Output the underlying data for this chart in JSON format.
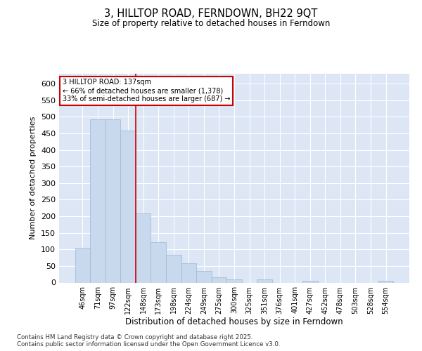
{
  "title": "3, HILLTOP ROAD, FERNDOWN, BH22 9QT",
  "subtitle": "Size of property relative to detached houses in Ferndown",
  "xlabel": "Distribution of detached houses by size in Ferndown",
  "ylabel": "Number of detached properties",
  "categories": [
    "46sqm",
    "71sqm",
    "97sqm",
    "122sqm",
    "148sqm",
    "173sqm",
    "198sqm",
    "224sqm",
    "249sqm",
    "275sqm",
    "300sqm",
    "325sqm",
    "351sqm",
    "376sqm",
    "401sqm",
    "427sqm",
    "452sqm",
    "478sqm",
    "503sqm",
    "528sqm",
    "554sqm"
  ],
  "values": [
    105,
    492,
    492,
    458,
    208,
    122,
    83,
    58,
    35,
    15,
    10,
    0,
    10,
    0,
    0,
    5,
    0,
    0,
    0,
    0,
    5
  ],
  "bar_color": "#c8d9ee",
  "bar_edge_color": "#9ab8d8",
  "background_color": "#dce6f5",
  "grid_color": "#ffffff",
  "vline_x": 3.5,
  "vline_color": "#cc0000",
  "annotation_text": "3 HILLTOP ROAD: 137sqm\n← 66% of detached houses are smaller (1,378)\n33% of semi-detached houses are larger (687) →",
  "annotation_box_color": "#cc0000",
  "footer": "Contains HM Land Registry data © Crown copyright and database right 2025.\nContains public sector information licensed under the Open Government Licence v3.0.",
  "fig_bg": "#ffffff",
  "ylim": [
    0,
    630
  ],
  "yticks": [
    0,
    50,
    100,
    150,
    200,
    250,
    300,
    350,
    400,
    450,
    500,
    550,
    600
  ]
}
